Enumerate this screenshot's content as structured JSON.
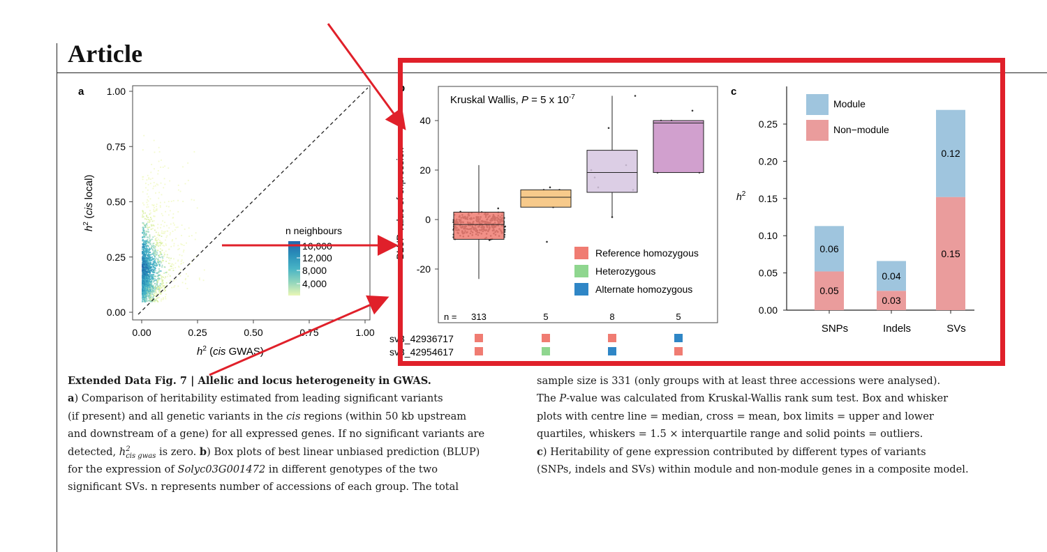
{
  "page": {
    "heading": "Article"
  },
  "panel_labels": {
    "a": "a",
    "b": "b",
    "c": "c"
  },
  "panel_a": {
    "xlabel_h": "h",
    "xlabel_sup": "2",
    "xlabel_paren_open": " (",
    "xlabel_it": "cis",
    "xlabel_rest": " GWAS)",
    "ylabel_h": "h",
    "ylabel_sup": "2",
    "ylabel_paren_open": " (",
    "ylabel_it": "cis",
    "ylabel_rest": " local)",
    "legend_title": "n neighbours",
    "legend_ticks": [
      "16,000",
      "12,000",
      "8,000",
      "4,000"
    ],
    "gradient_colors": [
      "#2166ac",
      "#2a8fb9",
      "#47b3c5",
      "#8fd4bd",
      "#d8ef9f",
      "#f1f9c3"
    ]
  },
  "panel_b": {
    "annotation_text": "Kruskal Wallis,  ",
    "annotation_p": "P",
    "annotation_eq": " = 5 x 10",
    "annotation_exp": "-7",
    "ylabel": "BLUP value of expression",
    "n_label": "n =",
    "legend": [
      {
        "label": "Reference homozygous",
        "color": "#f07c72"
      },
      {
        "label": "Heterozygous",
        "color": "#8fd68f"
      },
      {
        "label": "Alternate homozygous",
        "color": "#2f86c6"
      }
    ],
    "variant_labels": [
      "sv3_42936717",
      "sv3_42954617"
    ]
  },
  "panel_c": {
    "ylabel_h": "h",
    "ylabel_sup": "2",
    "legend": [
      {
        "label": "Module",
        "color": "#9fc5de"
      },
      {
        "label": "Non−module",
        "color": "#ea9c9c"
      }
    ]
  },
  "chart_data": [
    {
      "panel": "a",
      "type": "scatter",
      "xlabel": "h2 (cis GWAS)",
      "ylabel": "h2 (cis local)",
      "xlim": [
        0,
        1
      ],
      "ylim": [
        0,
        1
      ],
      "x_ticks": [
        "0.00",
        "0.25",
        "0.50",
        "0.75",
        "1.00"
      ],
      "y_ticks": [
        "0.00",
        "0.25",
        "0.50",
        "0.75",
        "1.00"
      ],
      "color_by": "n neighbours",
      "color_range": [
        0,
        16000
      ],
      "reference_line": "y = x (dashed)",
      "description_points": "dense cloud concentrated at low cis GWAS (0-0.1) and cis local 0.05-0.6"
    },
    {
      "panel": "b",
      "type": "box",
      "ylabel": "BLUP value of expression",
      "yticks": [
        -20,
        0,
        20,
        40
      ],
      "ylim": [
        -36,
        54
      ],
      "groups": [
        {
          "n": "313",
          "color": "#f07c72",
          "q1": -8,
          "median": -2,
          "q3": 3,
          "whisker_low": -24,
          "whisker_high": 22,
          "sv1": "#f07c72",
          "sv2": "#f07c72"
        },
        {
          "n": "5",
          "color": "#f6c177",
          "q1": 5,
          "median": 9,
          "q3": 12,
          "whisker_low": 5,
          "whisker_high": 12,
          "sv1": "#f07c72",
          "sv2": "#8fd68f"
        },
        {
          "n": "8",
          "color": "#d6c6e0",
          "q1": 11,
          "median": 19,
          "q3": 28,
          "whisker_low": 1,
          "whisker_high": 50,
          "sv1": "#f07c72",
          "sv2": "#2f86c6"
        },
        {
          "n": "5",
          "color": "#c98fc6",
          "q1": 19,
          "median": 39,
          "q3": 40,
          "whisker_low": 19,
          "whisker_high": 40,
          "sv1": "#2f86c6",
          "sv2": "#f07c72"
        }
      ]
    },
    {
      "panel": "c",
      "type": "bar",
      "stacked": true,
      "categories": [
        "SNPs",
        "Indels",
        "SVs"
      ],
      "ylim": [
        0,
        0.28
      ],
      "yticks": [
        "0.00",
        "0.05",
        "0.10",
        "0.15",
        "0.20",
        "0.25"
      ],
      "series": [
        {
          "name": "Non−module",
          "values": [
            0.05,
            0.03,
            0.15
          ],
          "labels": [
            "0.05",
            "0.03",
            "0.15"
          ]
        },
        {
          "name": "Module",
          "values": [
            0.06,
            0.04,
            0.12
          ],
          "labels": [
            "0.06",
            "0.04",
            "0.12"
          ]
        }
      ]
    }
  ],
  "caption": {
    "fig_label": "Extended Data Fig. 7 | Allelic and locus heterogeneity in GWAS.",
    "a_label": "a",
    "a_text1": ") Comparison of heritability estimated from leading significant variants",
    "a_text2": "(if present) and all genetic variants in the ",
    "a_cis": "cis",
    "a_text3": " regions (within 50 kb upstream",
    "a_text4": "and downstream of a gene) for all expressed genes. If no significant variants are",
    "a_text5a": "detected, ",
    "a_h": "h",
    "a_sup": "2",
    "a_sub": "cis gwas",
    "a_text5b": " is zero. ",
    "b_label": "b",
    "b_text1": ") Box plots of best linear unbiased prediction (BLUP)",
    "b_text2a": "for the expression of ",
    "b_gene": "Solyc03G001472",
    "b_text2b": " in different genotypes of the two",
    "b_text3": "significant SVs. n represents number of accessions of each group. The total",
    "r_text1": "sample size is 331 (only groups with at least three accessions were analysed).",
    "r_text2a": "The ",
    "r_p": "P",
    "r_text2b": "-value was calculated from Kruskal-Wallis rank sum test. Box and whisker",
    "r_text3": "plots with centre line = median, cross = mean, box limits = upper and lower",
    "r_text4": "quartiles, whiskers = 1.5 × interquartile range and solid points = outliers.",
    "c_label": "c",
    "c_text1": ") Heritability of gene expression contributed by different types of variants",
    "c_text2": "(SNPs, indels and SVs) within module and non-module genes in a composite model."
  }
}
